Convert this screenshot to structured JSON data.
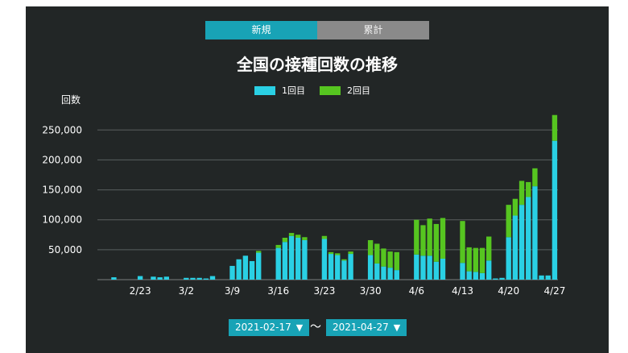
{
  "tabs": [
    {
      "label": "新規",
      "active": true
    },
    {
      "label": "累計",
      "active": false
    }
  ],
  "date_range": {
    "from": "2021-02-17",
    "separator": "～",
    "to": "2021-04-27"
  },
  "colors": {
    "first_dose": "#2ad0e4",
    "second_dose": "#56c520",
    "background": "#222626",
    "tab_active": "#18a3b6"
  },
  "chart_data": {
    "type": "bar",
    "stacked": true,
    "title": "全国の接種回数の推移",
    "ylabel": "回数",
    "xlabel": "",
    "ylim": [
      0,
      280000
    ],
    "yticks": [
      50000,
      100000,
      150000,
      200000,
      250000
    ],
    "ytick_labels": [
      "50,000",
      "100,000",
      "150,000",
      "200,000",
      "250,000"
    ],
    "grid": true,
    "legend_position": "top-center",
    "x_tick_labels": [
      {
        "date": "2021-02-23",
        "label": "2/23"
      },
      {
        "date": "2021-03-02",
        "label": "3/2"
      },
      {
        "date": "2021-03-09",
        "label": "3/9"
      },
      {
        "date": "2021-03-16",
        "label": "3/16"
      },
      {
        "date": "2021-03-23",
        "label": "3/23"
      },
      {
        "date": "2021-03-30",
        "label": "3/30"
      },
      {
        "date": "2021-04-06",
        "label": "4/6"
      },
      {
        "date": "2021-04-13",
        "label": "4/13"
      },
      {
        "date": "2021-04-20",
        "label": "4/20"
      },
      {
        "date": "2021-04-27",
        "label": "4/27"
      }
    ],
    "categories": [
      "2021-02-17",
      "2021-02-18",
      "2021-02-19",
      "2021-02-20",
      "2021-02-21",
      "2021-02-22",
      "2021-02-23",
      "2021-02-24",
      "2021-02-25",
      "2021-02-26",
      "2021-02-27",
      "2021-02-28",
      "2021-03-01",
      "2021-03-02",
      "2021-03-03",
      "2021-03-04",
      "2021-03-05",
      "2021-03-06",
      "2021-03-07",
      "2021-03-08",
      "2021-03-09",
      "2021-03-10",
      "2021-03-11",
      "2021-03-12",
      "2021-03-13",
      "2021-03-14",
      "2021-03-15",
      "2021-03-16",
      "2021-03-17",
      "2021-03-18",
      "2021-03-19",
      "2021-03-20",
      "2021-03-21",
      "2021-03-22",
      "2021-03-23",
      "2021-03-24",
      "2021-03-25",
      "2021-03-26",
      "2021-03-27",
      "2021-03-28",
      "2021-03-29",
      "2021-03-30",
      "2021-03-31",
      "2021-04-01",
      "2021-04-02",
      "2021-04-03",
      "2021-04-04",
      "2021-04-05",
      "2021-04-06",
      "2021-04-07",
      "2021-04-08",
      "2021-04-09",
      "2021-04-10",
      "2021-04-11",
      "2021-04-12",
      "2021-04-13",
      "2021-04-14",
      "2021-04-15",
      "2021-04-16",
      "2021-04-17",
      "2021-04-18",
      "2021-04-19",
      "2021-04-20",
      "2021-04-21",
      "2021-04-22",
      "2021-04-23",
      "2021-04-24",
      "2021-04-25",
      "2021-04-26",
      "2021-04-27"
    ],
    "series": [
      {
        "name": "1回目",
        "color": "#2ad0e4",
        "values": [
          0,
          0,
          4000,
          0,
          0,
          0,
          6000,
          0,
          5000,
          4000,
          5000,
          0,
          0,
          3000,
          3000,
          3000,
          2000,
          6000,
          0,
          0,
          23000,
          34000,
          40000,
          31000,
          45000,
          0,
          0,
          53000,
          63000,
          73000,
          70000,
          66000,
          0,
          0,
          68000,
          43000,
          41000,
          32000,
          43000,
          0,
          0,
          41000,
          27000,
          22000,
          20000,
          16000,
          0,
          0,
          42000,
          40000,
          40000,
          30000,
          35000,
          0,
          0,
          28000,
          14000,
          13000,
          11000,
          32000,
          2000,
          3000,
          71000,
          107000,
          125000,
          138000,
          156000,
          7000,
          7000,
          232000
        ]
      },
      {
        "name": "2回目",
        "color": "#56c520",
        "values": [
          0,
          0,
          0,
          0,
          0,
          0,
          0,
          0,
          0,
          0,
          0,
          0,
          0,
          0,
          0,
          0,
          0,
          0,
          0,
          0,
          0,
          0,
          0,
          0,
          3000,
          0,
          0,
          5000,
          7000,
          5000,
          5000,
          5000,
          0,
          0,
          5000,
          3000,
          3000,
          2000,
          4000,
          0,
          0,
          25000,
          33000,
          30000,
          27000,
          30000,
          0,
          0,
          58000,
          51000,
          62000,
          63000,
          68000,
          0,
          0,
          70000,
          40000,
          40000,
          42000,
          40000,
          0,
          0,
          54000,
          28000,
          40000,
          25000,
          30000,
          0,
          0,
          43000
        ]
      }
    ]
  }
}
